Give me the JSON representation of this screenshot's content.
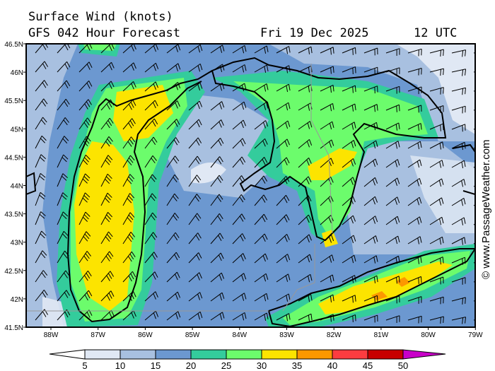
{
  "header": {
    "title": "Surface Wind (knots)",
    "model": "GFS 042 Hour Forecast",
    "date": "Fri 19 Dec 2025",
    "time": "12 UTC"
  },
  "map": {
    "lat_labels": [
      "46.5N",
      "46N",
      "45.5N",
      "45N",
      "44.5N",
      "44N",
      "43.5N",
      "43N",
      "42.5N",
      "42N",
      "41.5N"
    ],
    "lon_labels": [
      "88W",
      "87W",
      "86W",
      "85W",
      "84W",
      "83W",
      "82W",
      "81W",
      "80W",
      "79W"
    ]
  },
  "watermark": "© www.PassageWeather.com",
  "legend": {
    "ticks": [
      "5",
      "10",
      "15",
      "20",
      "25",
      "30",
      "35",
      "40",
      "45",
      "50"
    ],
    "colors": [
      "#e0e8f4",
      "#a8c0e0",
      "#6c98d0",
      "#34cc9c",
      "#6cfc6c",
      "#fce400",
      "#fc9800",
      "#fc3c40",
      "#c80000"
    ],
    "over_color": "#c800c8"
  }
}
